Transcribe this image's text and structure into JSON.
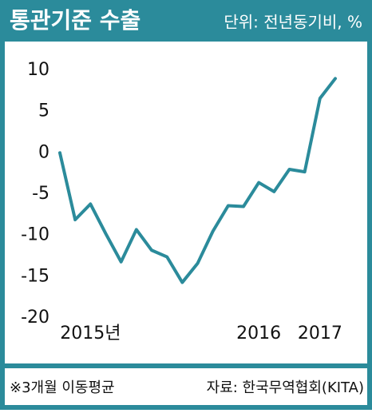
{
  "chart_data": {
    "type": "line",
    "title": "통관기준 수출",
    "subtitle": "단위: 전년동기비, %",
    "footnote": "※3개월 이동평균",
    "source": "자료: 한국무역협회(KITA)",
    "categories": [
      null,
      null,
      "2015년",
      null,
      null,
      null,
      null,
      null,
      null,
      null,
      null,
      null,
      null,
      "2016",
      null,
      null,
      null,
      "2017",
      null
    ],
    "series": [
      {
        "name": null,
        "color": "#2b8b9b",
        "values": [
          0,
          -8.1,
          -6.2,
          -9.8,
          -13.2,
          -9.3,
          -11.8,
          -12.6,
          -15.7,
          -13.4,
          -9.5,
          -6.4,
          -6.5,
          -3.6,
          -4.7,
          -2.0,
          -2.3,
          6.6,
          9.0
        ]
      }
    ],
    "ylim": [
      -20,
      10
    ],
    "yticks": [
      10,
      5,
      0,
      -5,
      -10,
      -15,
      -20
    ],
    "grid": false
  }
}
